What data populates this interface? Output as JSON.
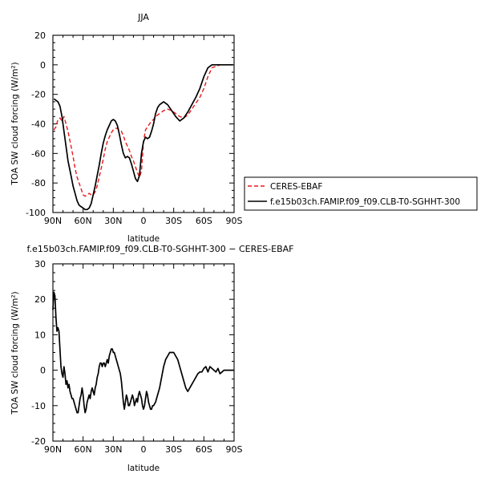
{
  "colors": {
    "model": "#000000",
    "obs": "#e8191a",
    "background": "#ffffff"
  },
  "chart_data": [
    {
      "type": "line",
      "title": "JJA",
      "xlabel": "latitude",
      "ylabel": "TOA SW cloud forcing (W/m²)",
      "xlim": [
        90,
        -90
      ],
      "ylim": [
        -100,
        20
      ],
      "x_tick_values": [
        90,
        60,
        30,
        0,
        -30,
        -60,
        -90
      ],
      "x_tick_labels": [
        "90N",
        "60N",
        "30N",
        "0",
        "30S",
        "60S",
        "90S"
      ],
      "y_ticks": [
        -100,
        -80,
        -60,
        -40,
        -20,
        0,
        20
      ],
      "legend": {
        "placement": "right",
        "entries": [
          "CERES-EBAF",
          "f.e15b03ch.FAMIP.f09_f09.CLB-T0-SGHHT-300"
        ]
      },
      "series": [
        {
          "name": "CERES-EBAF",
          "style": "dashed",
          "color": "#e8191a",
          "x": [
            89,
            87,
            85,
            83,
            81,
            79,
            77,
            75,
            72,
            70,
            68,
            66,
            64,
            62,
            60,
            58,
            56,
            54,
            52,
            50,
            48,
            46,
            44,
            42,
            40,
            38,
            36,
            34,
            32,
            30,
            28,
            26,
            24,
            22,
            20,
            18,
            16,
            14,
            12,
            10,
            8,
            6,
            4,
            2,
            0,
            -2,
            -4,
            -6,
            -8,
            -10,
            -12,
            -14,
            -16,
            -20,
            -24,
            -28,
            -32,
            -36,
            -40,
            -44,
            -48,
            -52,
            -56,
            -60,
            -64,
            -68,
            -72,
            -76,
            -80,
            -85,
            -89
          ],
          "values": [
            -44,
            -42,
            -37,
            -36,
            -38,
            -35,
            -40,
            -45,
            -55,
            -62,
            -70,
            -76,
            -80,
            -84,
            -88,
            -89,
            -88,
            -87,
            -88,
            -88,
            -86,
            -82,
            -76,
            -70,
            -64,
            -57,
            -52,
            -49,
            -46,
            -44,
            -43,
            -43,
            -44,
            -45,
            -48,
            -52,
            -55,
            -58,
            -62,
            -65,
            -69,
            -73,
            -76,
            -72,
            -52,
            -44,
            -42,
            -40,
            -38,
            -37,
            -35,
            -34,
            -33,
            -31,
            -30,
            -31,
            -33,
            -35,
            -36,
            -34,
            -30,
            -26,
            -22,
            -16,
            -8,
            -2,
            -1,
            0,
            0,
            0,
            0
          ]
        },
        {
          "name": "f.e15b03ch.FAMIP.f09_f09.CLB-T0-SGHHT-300",
          "style": "solid",
          "color": "#000000",
          "x": [
            89,
            87,
            85,
            83,
            81,
            79,
            77,
            75,
            72,
            70,
            68,
            66,
            64,
            62,
            60,
            58,
            56,
            54,
            52,
            50,
            48,
            46,
            44,
            42,
            40,
            38,
            36,
            34,
            32,
            30,
            28,
            26,
            24,
            22,
            20,
            18,
            16,
            14,
            12,
            10,
            8,
            6,
            4,
            2,
            0,
            -2,
            -4,
            -6,
            -8,
            -10,
            -12,
            -14,
            -16,
            -20,
            -24,
            -28,
            -32,
            -36,
            -40,
            -44,
            -48,
            -52,
            -56,
            -60,
            -64,
            -68,
            -72,
            -76,
            -80,
            -85,
            -89
          ],
          "values": [
            -23,
            -24,
            -25,
            -28,
            -35,
            -45,
            -55,
            -65,
            -75,
            -82,
            -87,
            -92,
            -95,
            -96,
            -97,
            -98,
            -98,
            -97,
            -94,
            -88,
            -82,
            -75,
            -68,
            -60,
            -53,
            -48,
            -44,
            -41,
            -38,
            -37,
            -38,
            -41,
            -47,
            -54,
            -60,
            -63,
            -62,
            -63,
            -67,
            -72,
            -77,
            -79,
            -75,
            -60,
            -52,
            -49,
            -50,
            -49,
            -45,
            -40,
            -33,
            -29,
            -27,
            -25,
            -27,
            -31,
            -35,
            -38,
            -36,
            -32,
            -27,
            -22,
            -16,
            -8,
            -2,
            0,
            0,
            0,
            0,
            0,
            0
          ]
        }
      ]
    },
    {
      "type": "line",
      "title": "f.e15b03ch.FAMIP.f09_f09.CLB-T0-SGHHT-300 − CERES-EBAF",
      "xlabel": "latitude",
      "ylabel": "TOA SW cloud forcing (W/m²)",
      "xlim": [
        90,
        -90
      ],
      "ylim": [
        -20,
        30
      ],
      "x_tick_values": [
        90,
        60,
        30,
        0,
        -30,
        -60,
        -90
      ],
      "x_tick_labels": [
        "90N",
        "60N",
        "30N",
        "0",
        "30S",
        "60S",
        "90S"
      ],
      "y_ticks": [
        -20,
        -10,
        0,
        10,
        20,
        30
      ],
      "series": [
        {
          "style": "solid",
          "color": "#000000",
          "x": [
            90,
            89,
            88,
            87,
            86,
            85,
            84,
            83,
            82,
            81,
            80,
            79,
            78,
            77,
            76,
            75,
            74,
            73,
            72,
            71,
            70,
            69,
            68,
            67,
            66,
            65,
            64,
            63,
            62,
            61,
            60,
            59,
            58,
            57,
            56,
            55,
            54,
            53,
            52,
            51,
            50,
            49,
            48,
            47,
            46,
            45,
            44,
            43,
            42,
            41,
            40,
            39,
            38,
            37,
            36,
            35,
            34,
            33,
            32,
            31,
            30,
            29,
            28,
            27,
            26,
            25,
            24,
            23,
            22,
            21,
            20,
            19,
            18,
            17,
            16,
            15,
            14,
            13,
            12,
            11,
            10,
            9,
            8,
            7,
            6,
            5,
            4,
            3,
            2,
            1,
            0,
            -1,
            -2,
            -3,
            -4,
            -5,
            -6,
            -7,
            -8,
            -9,
            -10,
            -12,
            -14,
            -16,
            -18,
            -20,
            -22,
            -24,
            -26,
            -28,
            -30,
            -32,
            -34,
            -36,
            -38,
            -40,
            -42,
            -44,
            -46,
            -48,
            -50,
            -52,
            -54,
            -56,
            -58,
            -60,
            -62,
            -64,
            -66,
            -68,
            -70,
            -72,
            -74,
            -76,
            -78,
            -80,
            -84,
            -88,
            -90
          ],
          "values": [
            17,
            22,
            21,
            15,
            11,
            12,
            11,
            6,
            1,
            -1,
            -2,
            1,
            -1,
            -4,
            -3,
            -5,
            -4,
            -6,
            -7,
            -8,
            -8,
            -9,
            -10,
            -11,
            -12,
            -12,
            -10,
            -8,
            -7,
            -5,
            -7,
            -10,
            -12,
            -11,
            -9,
            -8,
            -7,
            -8,
            -6,
            -5,
            -6,
            -7,
            -5,
            -4,
            -2,
            -1,
            1,
            2,
            2,
            1,
            2,
            2,
            1,
            2,
            3,
            2,
            4,
            5,
            6,
            6,
            5,
            5,
            4,
            3,
            2,
            1,
            0,
            -1,
            -3,
            -6,
            -9,
            -11,
            -9,
            -7,
            -8,
            -10,
            -10,
            -9,
            -8,
            -7,
            -8,
            -10,
            -9,
            -8,
            -9,
            -7,
            -6,
            -7,
            -8,
            -10,
            -11,
            -10,
            -8,
            -6,
            -7,
            -9,
            -10,
            -11,
            -11,
            -10,
            -10,
            -9,
            -7,
            -5,
            -2,
            1,
            3,
            4,
            5,
            5,
            5,
            4,
            3,
            1,
            -1,
            -3,
            -5,
            -6,
            -5,
            -4,
            -3,
            -2,
            -1,
            -0.5,
            -0.5,
            0.5,
            1,
            -0.5,
            1,
            0.5,
            0,
            -0.5,
            0.5,
            -1,
            -0.5,
            0,
            0,
            0,
            0
          ]
        }
      ]
    }
  ]
}
